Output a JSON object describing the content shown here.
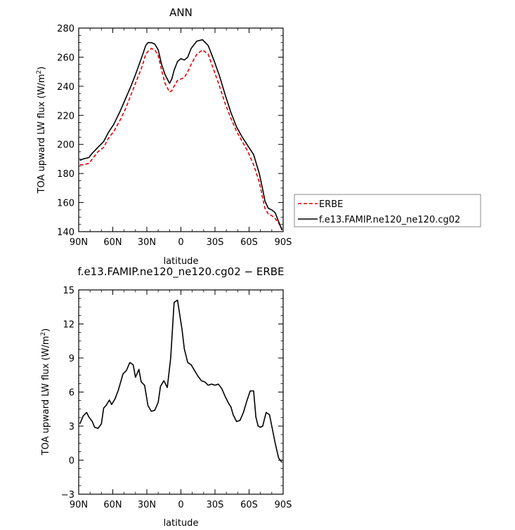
{
  "chart_data": [
    {
      "type": "line",
      "title": "ANN",
      "xlabel": "latitude",
      "ylabel_main": "TOA upward LW flux (W/m",
      "ylabel_sup": "2",
      "ylabel_close": ")",
      "xlim": [
        -90,
        90
      ],
      "ylim": [
        140,
        280
      ],
      "x_ticks": [
        -90,
        -60,
        -30,
        0,
        30,
        60,
        90
      ],
      "x_tick_labels": [
        "90N",
        "60N",
        "30N",
        "0",
        "30S",
        "60S",
        "90S"
      ],
      "y_ticks": [
        140,
        160,
        180,
        200,
        220,
        240,
        260,
        280
      ],
      "y_tick_labels": [
        "140",
        "160",
        "180",
        "200",
        "220",
        "240",
        "260",
        "280"
      ],
      "legend_position": "right",
      "x": [
        -89,
        -86,
        -81,
        -78,
        -73,
        -68,
        -64,
        -59,
        -54,
        -49,
        -44,
        -40,
        -34,
        -31,
        -29,
        -26,
        -23,
        -20,
        -17,
        -14,
        -10,
        -8,
        -6,
        -3,
        0,
        3,
        6,
        9,
        14,
        19,
        24,
        29,
        34,
        39,
        44,
        49,
        54,
        59,
        64,
        69,
        72,
        74,
        77,
        80,
        83,
        86,
        89
      ],
      "series": [
        {
          "name": "ERBE",
          "color": "#dd0000",
          "dash": "dashed",
          "values": [
            186,
            186,
            187,
            190,
            195,
            198,
            204,
            209,
            216,
            224,
            234,
            242,
            254,
            262,
            264,
            266,
            265,
            261,
            251,
            242,
            236,
            237,
            240,
            244,
            245,
            246,
            250,
            255,
            262,
            265,
            262,
            251,
            240,
            228,
            218,
            209,
            202,
            195,
            186,
            174,
            163,
            156,
            152,
            151,
            149,
            146,
            142
          ]
        },
        {
          "name": "f.e13.FAMIP.ne120_ne120.cg02",
          "color": "#000000",
          "dash": "solid",
          "values": [
            189,
            190,
            191,
            194,
            198,
            202,
            208,
            214,
            222,
            231,
            240,
            248,
            261,
            268,
            270,
            270,
            269,
            265,
            255,
            248,
            242,
            245,
            251,
            257,
            259,
            258,
            260,
            266,
            271,
            272,
            268,
            258,
            247,
            234,
            222,
            212,
            205,
            199,
            193,
            180,
            169,
            161,
            156,
            155,
            153,
            147,
            141
          ]
        }
      ]
    },
    {
      "type": "line",
      "title": "f.e13.FAMIP.ne120_ne120.cg02 − ERBE",
      "xlabel": "latitude",
      "ylabel_main": "TOA upward LW flux (W/m",
      "ylabel_sup": "2",
      "ylabel_close": ")",
      "xlim": [
        -90,
        90
      ],
      "ylim": [
        -3,
        15
      ],
      "x_ticks": [
        -90,
        -60,
        -30,
        0,
        30,
        60,
        90
      ],
      "x_tick_labels": [
        "90N",
        "60N",
        "30N",
        "0",
        "30S",
        "60S",
        "90S"
      ],
      "y_ticks": [
        -3,
        0,
        3,
        6,
        9,
        12,
        15
      ],
      "y_tick_labels": [
        "−3",
        "0",
        "3",
        "6",
        "9",
        "12",
        "15"
      ],
      "x": [
        -89,
        -86,
        -83,
        -81,
        -78,
        -76,
        -73,
        -70,
        -68,
        -66,
        -63,
        -61,
        -58,
        -55,
        -51,
        -48,
        -45,
        -42,
        -40,
        -37,
        -35,
        -32,
        -29,
        -26,
        -23,
        -20,
        -18,
        -15,
        -12,
        -9,
        -6,
        -3,
        -1,
        1,
        3,
        6,
        9,
        12,
        15,
        18,
        21,
        24,
        27,
        30,
        33,
        36,
        39,
        42,
        44,
        46,
        49,
        52,
        55,
        58,
        61,
        64,
        66,
        68,
        70,
        72,
        75,
        78,
        80,
        83,
        86,
        89
      ],
      "series": [
        {
          "name": "f.e13.FAMIP.ne120_ne120.cg02 - ERBE",
          "color": "#000000",
          "dash": "solid",
          "values": [
            3.2,
            3.9,
            4.2,
            3.8,
            3.4,
            2.9,
            2.8,
            3.2,
            4.6,
            4.8,
            5.3,
            4.9,
            5.4,
            6.2,
            7.6,
            7.9,
            8.6,
            8.4,
            7.3,
            8.0,
            6.9,
            6.6,
            4.8,
            4.3,
            4.4,
            5.1,
            6.5,
            7.0,
            6.4,
            9.0,
            13.9,
            14.1,
            12.8,
            11.5,
            9.8,
            8.6,
            8.4,
            7.9,
            7.4,
            7.0,
            6.9,
            6.6,
            6.7,
            6.6,
            6.7,
            6.3,
            5.6,
            5.0,
            4.7,
            4.0,
            3.4,
            3.5,
            4.2,
            5.2,
            6.1,
            6.1,
            3.8,
            3.0,
            2.9,
            3.0,
            4.2,
            4.0,
            3.0,
            1.5,
            0.2,
            -0.2
          ]
        }
      ]
    }
  ]
}
